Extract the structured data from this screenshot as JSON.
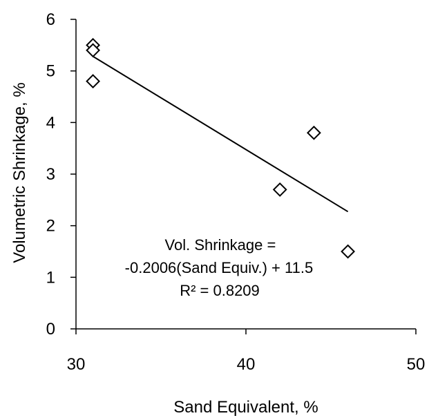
{
  "chart_data": {
    "type": "scatter",
    "xlabel": "Sand Equivalent, %",
    "ylabel": "Volumetric Shrinkage, %",
    "xlim": [
      30,
      50
    ],
    "ylim": [
      0,
      6
    ],
    "x_ticks": [
      30,
      40,
      50
    ],
    "y_ticks": [
      0,
      1,
      2,
      3,
      4,
      5,
      6
    ],
    "grid": false,
    "legend": "none",
    "marker": "open-diamond",
    "colors": {
      "marker": "#000000",
      "trendline": "#000000",
      "axis": "#000000"
    },
    "series": [
      {
        "points": [
          {
            "x": 31,
            "y": 5.5
          },
          {
            "x": 31,
            "y": 5.4
          },
          {
            "x": 31,
            "y": 4.8
          },
          {
            "x": 42,
            "y": 2.7
          },
          {
            "x": 44,
            "y": 3.8
          },
          {
            "x": 46,
            "y": 1.5
          }
        ]
      }
    ],
    "trendline": {
      "slope": -0.2006,
      "intercept": 11.5,
      "x_range": [
        31,
        46
      ]
    },
    "annotation": {
      "lines": [
        "Vol. Shrinkage =",
        "-0.2006(Sand Equiv.) + 11.5",
        "R² = 0.8209"
      ]
    }
  }
}
